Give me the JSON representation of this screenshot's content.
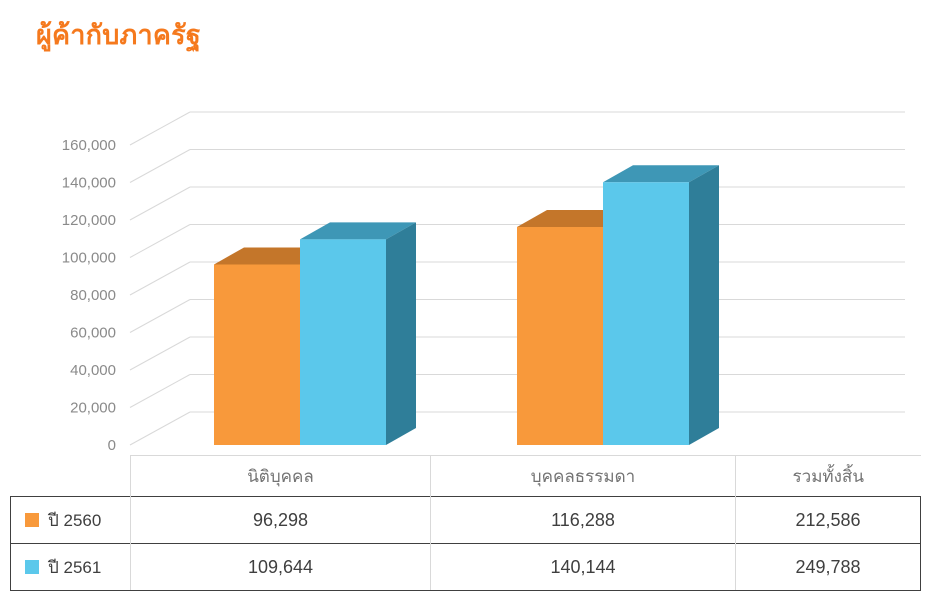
{
  "title": "ผู้ค้ากับภาครัฐ",
  "chart_data": {
    "type": "bar",
    "style": "3d-clustered",
    "title": "ผู้ค้ากับภาครัฐ",
    "categories": [
      "นิติบุคคล",
      "บุคคลธรรมดา"
    ],
    "series": [
      {
        "name": "ปี 2560",
        "values": [
          96298,
          116288
        ],
        "color": "#F8993B",
        "color_top": "#C4762A",
        "color_side": "#A96323"
      },
      {
        "name": "ปี 2561",
        "values": [
          109644,
          140144
        ],
        "color": "#5BC8EB",
        "color_top": "#3E97B6",
        "color_side": "#2F7E99"
      }
    ],
    "xlabel": "",
    "ylabel": "",
    "ylim": [
      0,
      160000
    ],
    "ytick_step": 20000,
    "yticks": [
      "0",
      "20,000",
      "40,000",
      "60,000",
      "80,000",
      "100,000",
      "120,000",
      "140,000",
      "160,000"
    ],
    "grid": true,
    "legend_position": "table-left-column",
    "colors": {
      "grid": "#d9d9d9",
      "tick_text": "#8a8a8a",
      "title": "#F5791D"
    }
  },
  "table": {
    "headers": [
      "",
      "นิติบุคคล",
      "บุคคลธรรมดา",
      "รวมทั้งสิ้น"
    ],
    "rows": [
      {
        "legend": "ปี 2560",
        "color": "#F8993B",
        "values": [
          "96,298",
          "116,288",
          "212,586"
        ]
      },
      {
        "legend": "ปี 2561",
        "color": "#5BC8EB",
        "values": [
          "109,644",
          "140,144",
          "249,788"
        ]
      }
    ]
  }
}
